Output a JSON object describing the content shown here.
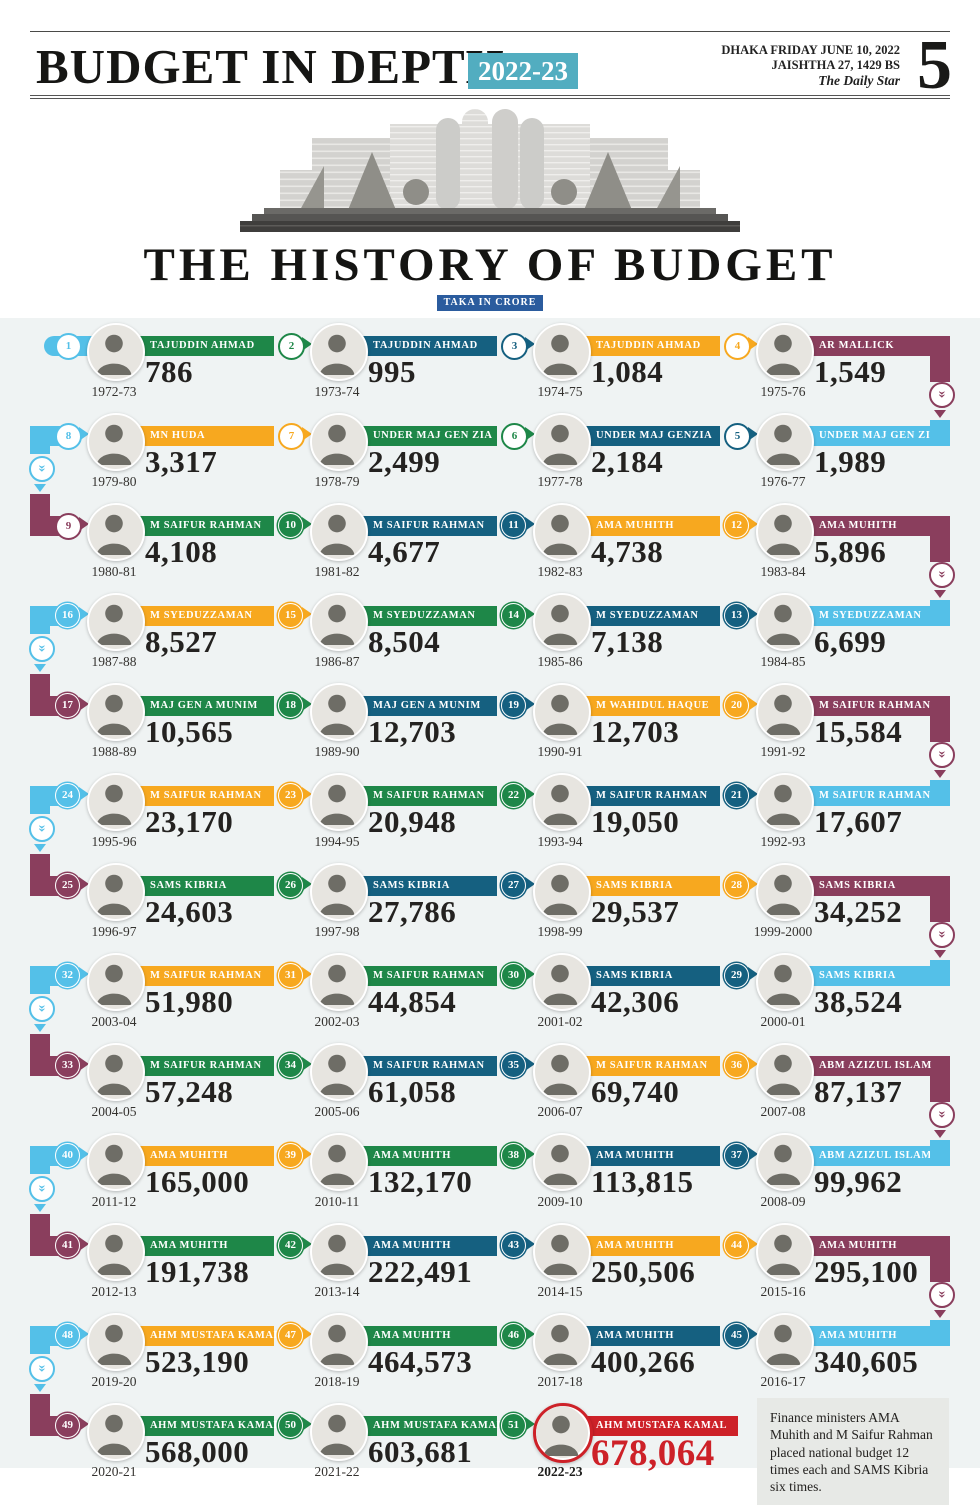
{
  "header": {
    "title": "BUDGET IN DEPTH",
    "edition": "2022-23",
    "dateline_line1": "DHAKA FRIDAY JUNE 10, 2022",
    "dateline_line2": "JAISHTHA 27, 1429 BS",
    "masthead": "The Daily Star",
    "page_number": "5"
  },
  "main": {
    "title": "THE HISTORY OF BUDGET",
    "unit_label": "TAKA IN CRORE",
    "note": "Finance ministers AMA Muhith and M Saifur Rahman placed national budget 12 times each and SAMS Kibria six times."
  },
  "colors": {
    "green": "#1e8748",
    "dark_blue": "#156080",
    "orange": "#f7a81f",
    "maroon": "#8a3e5d",
    "light_blue": "#54c0e8",
    "red": "#cd2128",
    "badge_teal": "#52adc0",
    "unit_blue": "#2b5c9e"
  },
  "timeline": {
    "rows": [
      {
        "items": [
          {
            "num": 1,
            "badge": "light_blue",
            "year": "1972-73",
            "name": "TAJUDDIN AHMAD",
            "value": "786",
            "banner": "green"
          },
          {
            "num": 2,
            "badge": "green",
            "year": "1973-74",
            "name": "TAJUDDIN AHMAD",
            "value": "995",
            "banner": "dark_blue"
          },
          {
            "num": 3,
            "badge": "dark_blue",
            "year": "1974-75",
            "name": "TAJUDDIN AHMAD",
            "value": "1,084",
            "banner": "orange"
          },
          {
            "num": 4,
            "badge": "orange",
            "year": "1975-76",
            "name": "AR MALLICK",
            "value": "1,549",
            "banner": "maroon"
          }
        ]
      },
      {
        "items": [
          {
            "num": 8,
            "badge": "light_blue",
            "year": "1979-80",
            "name": "MN HUDA",
            "value": "3,317",
            "banner": "orange"
          },
          {
            "num": 7,
            "badge": "orange",
            "year": "1978-79",
            "name": "UNDER MAJ GEN ZIA",
            "value": "2,499",
            "banner": "green"
          },
          {
            "num": 6,
            "badge": "green",
            "year": "1977-78",
            "name": "UNDER MAJ GENZIA",
            "value": "2,184",
            "banner": "dark_blue"
          },
          {
            "num": 5,
            "badge": "dark_blue",
            "year": "1976-77",
            "name": "UNDER MAJ GEN ZIA",
            "value": "1,989",
            "banner": "light_blue"
          }
        ]
      },
      {
        "items": [
          {
            "num": 9,
            "badge": "maroon",
            "year": "1980-81",
            "name": "M SAIFUR RAHMAN",
            "value": "4,108",
            "banner": "green"
          },
          {
            "num": 10,
            "badge": "green",
            "year": "1981-82",
            "name": "M SAIFUR RAHMAN",
            "value": "4,677",
            "banner": "dark_blue"
          },
          {
            "num": 11,
            "badge": "dark_blue",
            "year": "1982-83",
            "name": "AMA MUHITH",
            "value": "4,738",
            "banner": "orange"
          },
          {
            "num": 12,
            "badge": "orange",
            "year": "1983-84",
            "name": "AMA MUHITH",
            "value": "5,896",
            "banner": "maroon"
          }
        ]
      },
      {
        "items": [
          {
            "num": 16,
            "badge": "light_blue",
            "year": "1987-88",
            "name": "M SYEDUZZAMAN",
            "value": "8,527",
            "banner": "orange"
          },
          {
            "num": 15,
            "badge": "orange",
            "year": "1986-87",
            "name": "M SYEDUZZAMAN",
            "value": "8,504",
            "banner": "green"
          },
          {
            "num": 14,
            "badge": "green",
            "year": "1985-86",
            "name": "M SYEDUZZAMAN",
            "value": "7,138",
            "banner": "dark_blue"
          },
          {
            "num": 13,
            "badge": "dark_blue",
            "year": "1984-85",
            "name": "M SYEDUZZAMAN",
            "value": "6,699",
            "banner": "light_blue"
          }
        ]
      },
      {
        "items": [
          {
            "num": 17,
            "badge": "maroon",
            "year": "1988-89",
            "name": "MAJ GEN A MUNIM",
            "value": "10,565",
            "banner": "green"
          },
          {
            "num": 18,
            "badge": "green",
            "year": "1989-90",
            "name": "MAJ GEN A MUNIM",
            "value": "12,703",
            "banner": "dark_blue"
          },
          {
            "num": 19,
            "badge": "dark_blue",
            "year": "1990-91",
            "name": "M WAHIDUL HAQUE",
            "value": "12,703",
            "banner": "orange"
          },
          {
            "num": 20,
            "badge": "orange",
            "year": "1991-92",
            "name": "M SAIFUR RAHMAN",
            "value": "15,584",
            "banner": "maroon"
          }
        ]
      },
      {
        "items": [
          {
            "num": 24,
            "badge": "light_blue",
            "year": "1995-96",
            "name": "M SAIFUR RAHMAN",
            "value": "23,170",
            "banner": "orange"
          },
          {
            "num": 23,
            "badge": "orange",
            "year": "1994-95",
            "name": "M SAIFUR RAHMAN",
            "value": "20,948",
            "banner": "green"
          },
          {
            "num": 22,
            "badge": "green",
            "year": "1993-94",
            "name": "M SAIFUR RAHMAN",
            "value": "19,050",
            "banner": "dark_blue"
          },
          {
            "num": 21,
            "badge": "dark_blue",
            "year": "1992-93",
            "name": "M SAIFUR RAHMAN",
            "value": "17,607",
            "banner": "light_blue"
          }
        ]
      },
      {
        "items": [
          {
            "num": 25,
            "badge": "maroon",
            "year": "1996-97",
            "name": "SAMS KIBRIA",
            "value": "24,603",
            "banner": "green"
          },
          {
            "num": 26,
            "badge": "green",
            "year": "1997-98",
            "name": "SAMS KIBRIA",
            "value": "27,786",
            "banner": "dark_blue"
          },
          {
            "num": 27,
            "badge": "dark_blue",
            "year": "1998-99",
            "name": "SAMS KIBRIA",
            "value": "29,537",
            "banner": "orange"
          },
          {
            "num": 28,
            "badge": "orange",
            "year": "1999-2000",
            "name": "SAMS KIBRIA",
            "value": "34,252",
            "banner": "maroon"
          }
        ]
      },
      {
        "items": [
          {
            "num": 32,
            "badge": "light_blue",
            "year": "2003-04",
            "name": "M SAIFUR RAHMAN",
            "value": "51,980",
            "banner": "orange"
          },
          {
            "num": 31,
            "badge": "orange",
            "year": "2002-03",
            "name": "M SAIFUR RAHMAN",
            "value": "44,854",
            "banner": "green"
          },
          {
            "num": 30,
            "badge": "green",
            "year": "2001-02",
            "name": "SAMS KIBRIA",
            "value": "42,306",
            "banner": "dark_blue"
          },
          {
            "num": 29,
            "badge": "dark_blue",
            "year": "2000-01",
            "name": "SAMS KIBRIA",
            "value": "38,524",
            "banner": "light_blue"
          }
        ]
      },
      {
        "items": [
          {
            "num": 33,
            "badge": "maroon",
            "year": "2004-05",
            "name": "M SAIFUR RAHMAN",
            "value": "57,248",
            "banner": "green"
          },
          {
            "num": 34,
            "badge": "green",
            "year": "2005-06",
            "name": "M SAIFUR RAHMAN",
            "value": "61,058",
            "banner": "dark_blue"
          },
          {
            "num": 35,
            "badge": "dark_blue",
            "year": "2006-07",
            "name": "M SAIFUR RAHMAN",
            "value": "69,740",
            "banner": "orange"
          },
          {
            "num": 36,
            "badge": "orange",
            "year": "2007-08",
            "name": "ABM AZIZUL ISLAM",
            "value": "87,137",
            "banner": "maroon"
          }
        ]
      },
      {
        "items": [
          {
            "num": 40,
            "badge": "light_blue",
            "year": "2011-12",
            "name": "AMA MUHITH",
            "value": "165,000",
            "banner": "orange"
          },
          {
            "num": 39,
            "badge": "orange",
            "year": "2010-11",
            "name": "AMA MUHITH",
            "value": "132,170",
            "banner": "green"
          },
          {
            "num": 38,
            "badge": "green",
            "year": "2009-10",
            "name": "AMA MUHITH",
            "value": "113,815",
            "banner": "dark_blue"
          },
          {
            "num": 37,
            "badge": "dark_blue",
            "year": "2008-09",
            "name": "ABM AZIZUL ISLAM",
            "value": "99,962",
            "banner": "light_blue"
          }
        ]
      },
      {
        "items": [
          {
            "num": 41,
            "badge": "maroon",
            "year": "2012-13",
            "name": "AMA MUHITH",
            "value": "191,738",
            "banner": "green"
          },
          {
            "num": 42,
            "badge": "green",
            "year": "2013-14",
            "name": "AMA MUHITH",
            "value": "222,491",
            "banner": "dark_blue"
          },
          {
            "num": 43,
            "badge": "dark_blue",
            "year": "2014-15",
            "name": "AMA MUHITH",
            "value": "250,506",
            "banner": "orange"
          },
          {
            "num": 44,
            "badge": "orange",
            "year": "2015-16",
            "name": "AMA MUHITH",
            "value": "295,100",
            "banner": "maroon"
          }
        ]
      },
      {
        "items": [
          {
            "num": 48,
            "badge": "light_blue",
            "year": "2019-20",
            "name": "AHM MUSTAFA KAMAL",
            "value": "523,190",
            "banner": "orange"
          },
          {
            "num": 47,
            "badge": "orange",
            "year": "2018-19",
            "name": "AMA MUHITH",
            "value": "464,573",
            "banner": "green"
          },
          {
            "num": 46,
            "badge": "green",
            "year": "2017-18",
            "name": "AMA MUHITH",
            "value": "400,266",
            "banner": "dark_blue"
          },
          {
            "num": 45,
            "badge": "dark_blue",
            "year": "2016-17",
            "name": "AMA MUHITH",
            "value": "340,605",
            "banner": "light_blue"
          }
        ]
      },
      {
        "items": [
          {
            "num": 49,
            "badge": "maroon",
            "year": "2020-21",
            "name": "AHM MUSTAFA KAMAL",
            "value": "568,000",
            "banner": "green"
          },
          {
            "num": 50,
            "badge": "green",
            "year": "2021-22",
            "name": "AHM MUSTAFA KAMAL",
            "value": "603,681",
            "banner": "green"
          },
          {
            "num": 51,
            "badge": "green",
            "year": "2022-23",
            "name": "AHM MUSTAFA KAMAL",
            "value": "678,064",
            "banner": "red",
            "highlight": true
          }
        ]
      }
    ]
  }
}
